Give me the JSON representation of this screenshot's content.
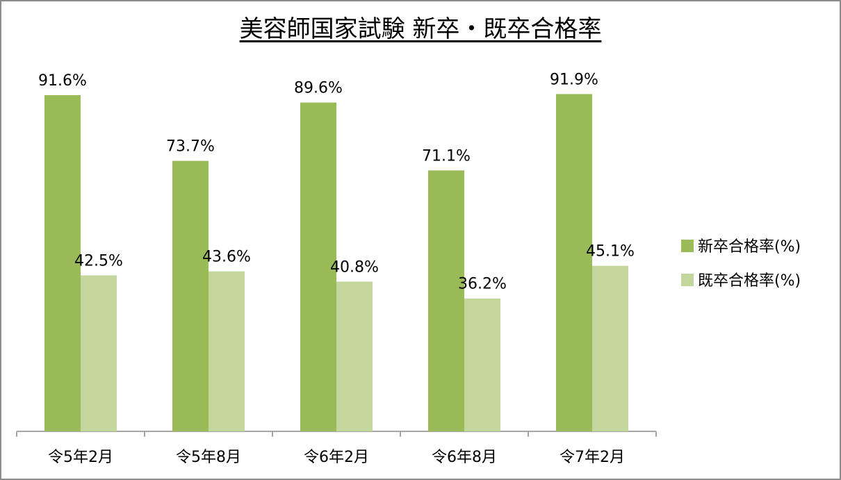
{
  "chart_data": {
    "type": "bar",
    "title": "美容師国家試験 新卒・既卒合格率",
    "categories": [
      "令5年2月",
      "令5年8月",
      "令6年2月",
      "令6年8月",
      "令7年2月"
    ],
    "series": [
      {
        "name": "新卒合格率(%)",
        "color": "#9bbb59",
        "values": [
          91.6,
          73.7,
          89.6,
          71.1,
          91.9
        ]
      },
      {
        "name": "既卒合格率(%)",
        "color": "#c3d69b",
        "values": [
          42.5,
          43.6,
          40.8,
          36.2,
          45.1
        ]
      }
    ],
    "value_labels": [
      [
        "91.6%",
        "73.7%",
        "89.6%",
        "71.1%",
        "91.9%"
      ],
      [
        "42.5%",
        "43.6%",
        "40.8%",
        "36.2%",
        "45.1%"
      ]
    ],
    "ylim": [
      0,
      100
    ],
    "grid": false,
    "legend_position": "right"
  }
}
